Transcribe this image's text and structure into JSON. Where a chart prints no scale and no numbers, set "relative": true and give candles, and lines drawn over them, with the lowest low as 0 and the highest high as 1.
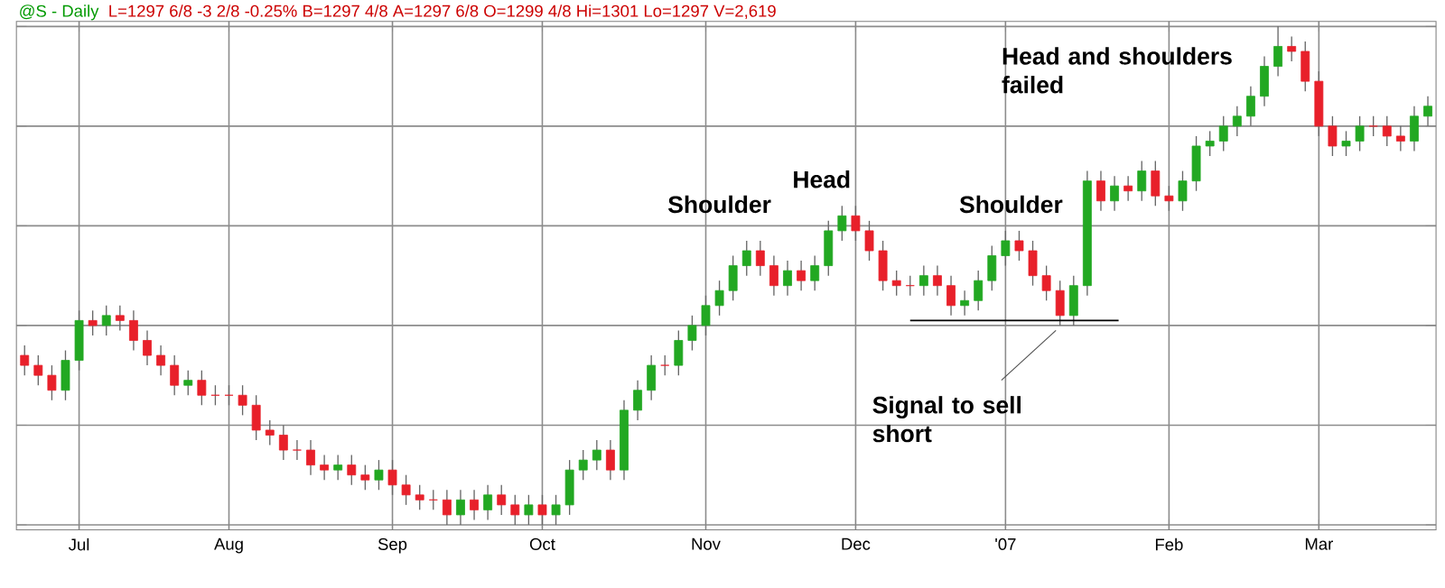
{
  "chart_data": {
    "type": "candlestick",
    "relative": true,
    "title": "@S - Daily",
    "subtitle": "L=1297 6/8 -3 2/8 -0.25% B=1297 4/8 A=1297 6/8 O=1299 4/8 Hi=1301 Lo=1297 V=2,619",
    "annotations": [
      "Shoulder",
      "Head",
      "Shoulder",
      "Head and shoulders failed",
      "Signal to sell short"
    ],
    "grid": true,
    "ref_lines": [
      {
        "axis": "y",
        "value": 0.41,
        "color": "#000000"
      }
    ],
    "categories": [
      null,
      null,
      null,
      null,
      "Jul",
      null,
      null,
      null,
      null,
      null,
      null,
      null,
      null,
      null,
      null,
      "Aug",
      null,
      null,
      null,
      null,
      null,
      null,
      null,
      null,
      null,
      null,
      null,
      "Sep",
      null,
      null,
      null,
      null,
      null,
      null,
      null,
      null,
      null,
      null,
      "Oct",
      null,
      null,
      null,
      null,
      null,
      null,
      null,
      null,
      null,
      null,
      null,
      "Nov",
      null,
      null,
      null,
      null,
      null,
      null,
      null,
      null,
      null,
      null,
      "Dec",
      null,
      null,
      null,
      null,
      null,
      null,
      null,
      null,
      null,
      null,
      "'07",
      null,
      null,
      null,
      null,
      null,
      null,
      null,
      null,
      null,
      null,
      null,
      "Feb",
      null,
      null,
      null,
      null,
      null,
      null,
      null,
      null,
      null,
      null,
      "Mar",
      null,
      null,
      null,
      null,
      null,
      null,
      null,
      null
    ],
    "ohlc": [
      [
        0.34,
        0.36,
        0.3,
        0.32
      ],
      [
        0.32,
        0.34,
        0.28,
        0.3
      ],
      [
        0.3,
        0.32,
        0.25,
        0.27
      ],
      [
        0.27,
        0.35,
        0.25,
        0.33
      ],
      [
        0.33,
        0.43,
        0.31,
        0.41
      ],
      [
        0.41,
        0.43,
        0.38,
        0.4
      ],
      [
        0.4,
        0.44,
        0.38,
        0.42
      ],
      [
        0.42,
        0.44,
        0.39,
        0.41
      ],
      [
        0.41,
        0.43,
        0.35,
        0.37
      ],
      [
        0.37,
        0.39,
        0.32,
        0.34
      ],
      [
        0.34,
        0.36,
        0.3,
        0.32
      ],
      [
        0.32,
        0.34,
        0.26,
        0.28
      ],
      [
        0.28,
        0.31,
        0.26,
        0.29
      ],
      [
        0.29,
        0.31,
        0.24,
        0.26
      ],
      [
        0.26,
        0.28,
        0.24,
        0.26
      ],
      [
        0.26,
        0.28,
        0.24,
        0.26
      ],
      [
        0.26,
        0.28,
        0.22,
        0.24
      ],
      [
        0.24,
        0.26,
        0.17,
        0.19
      ],
      [
        0.19,
        0.21,
        0.16,
        0.18
      ],
      [
        0.18,
        0.2,
        0.13,
        0.15
      ],
      [
        0.15,
        0.17,
        0.13,
        0.15
      ],
      [
        0.15,
        0.17,
        0.1,
        0.12
      ],
      [
        0.12,
        0.14,
        0.09,
        0.11
      ],
      [
        0.11,
        0.14,
        0.09,
        0.12
      ],
      [
        0.12,
        0.14,
        0.08,
        0.1
      ],
      [
        0.1,
        0.12,
        0.07,
        0.09
      ],
      [
        0.09,
        0.13,
        0.07,
        0.11
      ],
      [
        0.11,
        0.13,
        0.06,
        0.08
      ],
      [
        0.08,
        0.1,
        0.04,
        0.06
      ],
      [
        0.06,
        0.08,
        0.03,
        0.05
      ],
      [
        0.05,
        0.07,
        0.03,
        0.05
      ],
      [
        0.05,
        0.07,
        0.0,
        0.02
      ],
      [
        0.02,
        0.07,
        0.0,
        0.05
      ],
      [
        0.05,
        0.07,
        0.01,
        0.03
      ],
      [
        0.03,
        0.08,
        0.01,
        0.06
      ],
      [
        0.06,
        0.08,
        0.02,
        0.04
      ],
      [
        0.04,
        0.06,
        0.0,
        0.02
      ],
      [
        0.02,
        0.06,
        0.0,
        0.04
      ],
      [
        0.04,
        0.06,
        0.0,
        0.02
      ],
      [
        0.02,
        0.06,
        0.0,
        0.04
      ],
      [
        0.04,
        0.13,
        0.02,
        0.11
      ],
      [
        0.11,
        0.15,
        0.09,
        0.13
      ],
      [
        0.13,
        0.17,
        0.11,
        0.15
      ],
      [
        0.15,
        0.17,
        0.09,
        0.11
      ],
      [
        0.11,
        0.25,
        0.09,
        0.23
      ],
      [
        0.23,
        0.29,
        0.21,
        0.27
      ],
      [
        0.27,
        0.34,
        0.25,
        0.32
      ],
      [
        0.32,
        0.34,
        0.3,
        0.32
      ],
      [
        0.32,
        0.39,
        0.3,
        0.37
      ],
      [
        0.37,
        0.42,
        0.35,
        0.4
      ],
      [
        0.4,
        0.46,
        0.38,
        0.44
      ],
      [
        0.44,
        0.49,
        0.42,
        0.47
      ],
      [
        0.47,
        0.54,
        0.45,
        0.52
      ],
      [
        0.52,
        0.57,
        0.5,
        0.55
      ],
      [
        0.55,
        0.57,
        0.5,
        0.52
      ],
      [
        0.52,
        0.54,
        0.46,
        0.48
      ],
      [
        0.48,
        0.53,
        0.46,
        0.51
      ],
      [
        0.51,
        0.53,
        0.47,
        0.49
      ],
      [
        0.49,
        0.54,
        0.47,
        0.52
      ],
      [
        0.52,
        0.61,
        0.5,
        0.59
      ],
      [
        0.59,
        0.64,
        0.57,
        0.62
      ],
      [
        0.62,
        0.64,
        0.57,
        0.59
      ],
      [
        0.59,
        0.61,
        0.53,
        0.55
      ],
      [
        0.55,
        0.57,
        0.47,
        0.49
      ],
      [
        0.49,
        0.51,
        0.46,
        0.48
      ],
      [
        0.48,
        0.5,
        0.46,
        0.48
      ],
      [
        0.48,
        0.52,
        0.46,
        0.5
      ],
      [
        0.5,
        0.52,
        0.46,
        0.48
      ],
      [
        0.48,
        0.5,
        0.42,
        0.44
      ],
      [
        0.44,
        0.47,
        0.42,
        0.45
      ],
      [
        0.45,
        0.51,
        0.43,
        0.49
      ],
      [
        0.49,
        0.56,
        0.47,
        0.54
      ],
      [
        0.54,
        0.59,
        0.52,
        0.57
      ],
      [
        0.57,
        0.59,
        0.53,
        0.55
      ],
      [
        0.55,
        0.57,
        0.48,
        0.5
      ],
      [
        0.5,
        0.52,
        0.45,
        0.47
      ],
      [
        0.47,
        0.49,
        0.4,
        0.42
      ],
      [
        0.42,
        0.5,
        0.4,
        0.48
      ],
      [
        0.48,
        0.71,
        0.46,
        0.69
      ],
      [
        0.69,
        0.71,
        0.63,
        0.65
      ],
      [
        0.65,
        0.7,
        0.63,
        0.68
      ],
      [
        0.68,
        0.7,
        0.65,
        0.67
      ],
      [
        0.67,
        0.73,
        0.65,
        0.71
      ],
      [
        0.71,
        0.73,
        0.64,
        0.66
      ],
      [
        0.66,
        0.68,
        0.63,
        0.65
      ],
      [
        0.65,
        0.71,
        0.63,
        0.69
      ],
      [
        0.69,
        0.78,
        0.67,
        0.76
      ],
      [
        0.76,
        0.79,
        0.74,
        0.77
      ],
      [
        0.77,
        0.82,
        0.75,
        0.8
      ],
      [
        0.8,
        0.84,
        0.78,
        0.82
      ],
      [
        0.82,
        0.88,
        0.8,
        0.86
      ],
      [
        0.86,
        0.94,
        0.84,
        0.92
      ],
      [
        0.92,
        1.0,
        0.9,
        0.96
      ],
      [
        0.96,
        0.98,
        0.93,
        0.95
      ],
      [
        0.95,
        0.97,
        0.87,
        0.89
      ],
      [
        0.89,
        0.91,
        0.78,
        0.8
      ],
      [
        0.8,
        0.82,
        0.74,
        0.76
      ],
      [
        0.76,
        0.79,
        0.74,
        0.77
      ],
      [
        0.77,
        0.82,
        0.75,
        0.8
      ],
      [
        0.8,
        0.82,
        0.78,
        0.8
      ],
      [
        0.8,
        0.82,
        0.76,
        0.78
      ],
      [
        0.78,
        0.8,
        0.75,
        0.77
      ],
      [
        0.77,
        0.84,
        0.75,
        0.82
      ],
      [
        0.82,
        0.86,
        0.8,
        0.84
      ]
    ],
    "colors": [
      "#e8202a",
      "#e8202a",
      "#e8202a",
      "#22a822",
      "#22a822",
      "#e8202a",
      "#22a822",
      "#e8202a",
      "#e8202a",
      "#e8202a",
      "#e8202a",
      "#e8202a",
      "#22a822",
      "#e8202a",
      "#e8202a",
      "#e8202a",
      "#e8202a",
      "#e8202a",
      "#e8202a",
      "#e8202a",
      "#e8202a",
      "#e8202a",
      "#e8202a",
      "#22a822",
      "#e8202a",
      "#e8202a",
      "#22a822",
      "#e8202a",
      "#e8202a",
      "#e8202a",
      "#e8202a",
      "#e8202a",
      "#22a822",
      "#e8202a",
      "#22a822",
      "#e8202a",
      "#e8202a",
      "#22a822",
      "#e8202a",
      "#22a822",
      "#22a822",
      "#22a822",
      "#22a822",
      "#e8202a",
      "#22a822",
      "#22a822",
      "#22a822",
      "#e8202a",
      "#22a822",
      "#22a822",
      "#22a822",
      "#22a822",
      "#22a822",
      "#22a822",
      "#e8202a",
      "#e8202a",
      "#22a822",
      "#e8202a",
      "#22a822",
      "#22a822",
      "#22a822",
      "#e8202a",
      "#e8202a",
      "#e8202a",
      "#e8202a",
      "#e8202a",
      "#22a822",
      "#e8202a",
      "#e8202a",
      "#22a822",
      "#22a822",
      "#22a822",
      "#22a822",
      "#e8202a",
      "#e8202a",
      "#e8202a",
      "#e8202a",
      "#22a822",
      "#22a822",
      "#e8202a",
      "#22a822",
      "#e8202a",
      "#22a822",
      "#e8202a",
      "#e8202a",
      "#22a822",
      "#22a822",
      "#22a822",
      "#22a822",
      "#22a822",
      "#22a822",
      "#22a822",
      "#22a822",
      "#e8202a",
      "#e8202a",
      "#e8202a",
      "#e8202a",
      "#22a822",
      "#22a822",
      "#e8202a",
      "#e8202a",
      "#e8202a",
      "#22a822",
      "#22a822"
    ]
  }
}
